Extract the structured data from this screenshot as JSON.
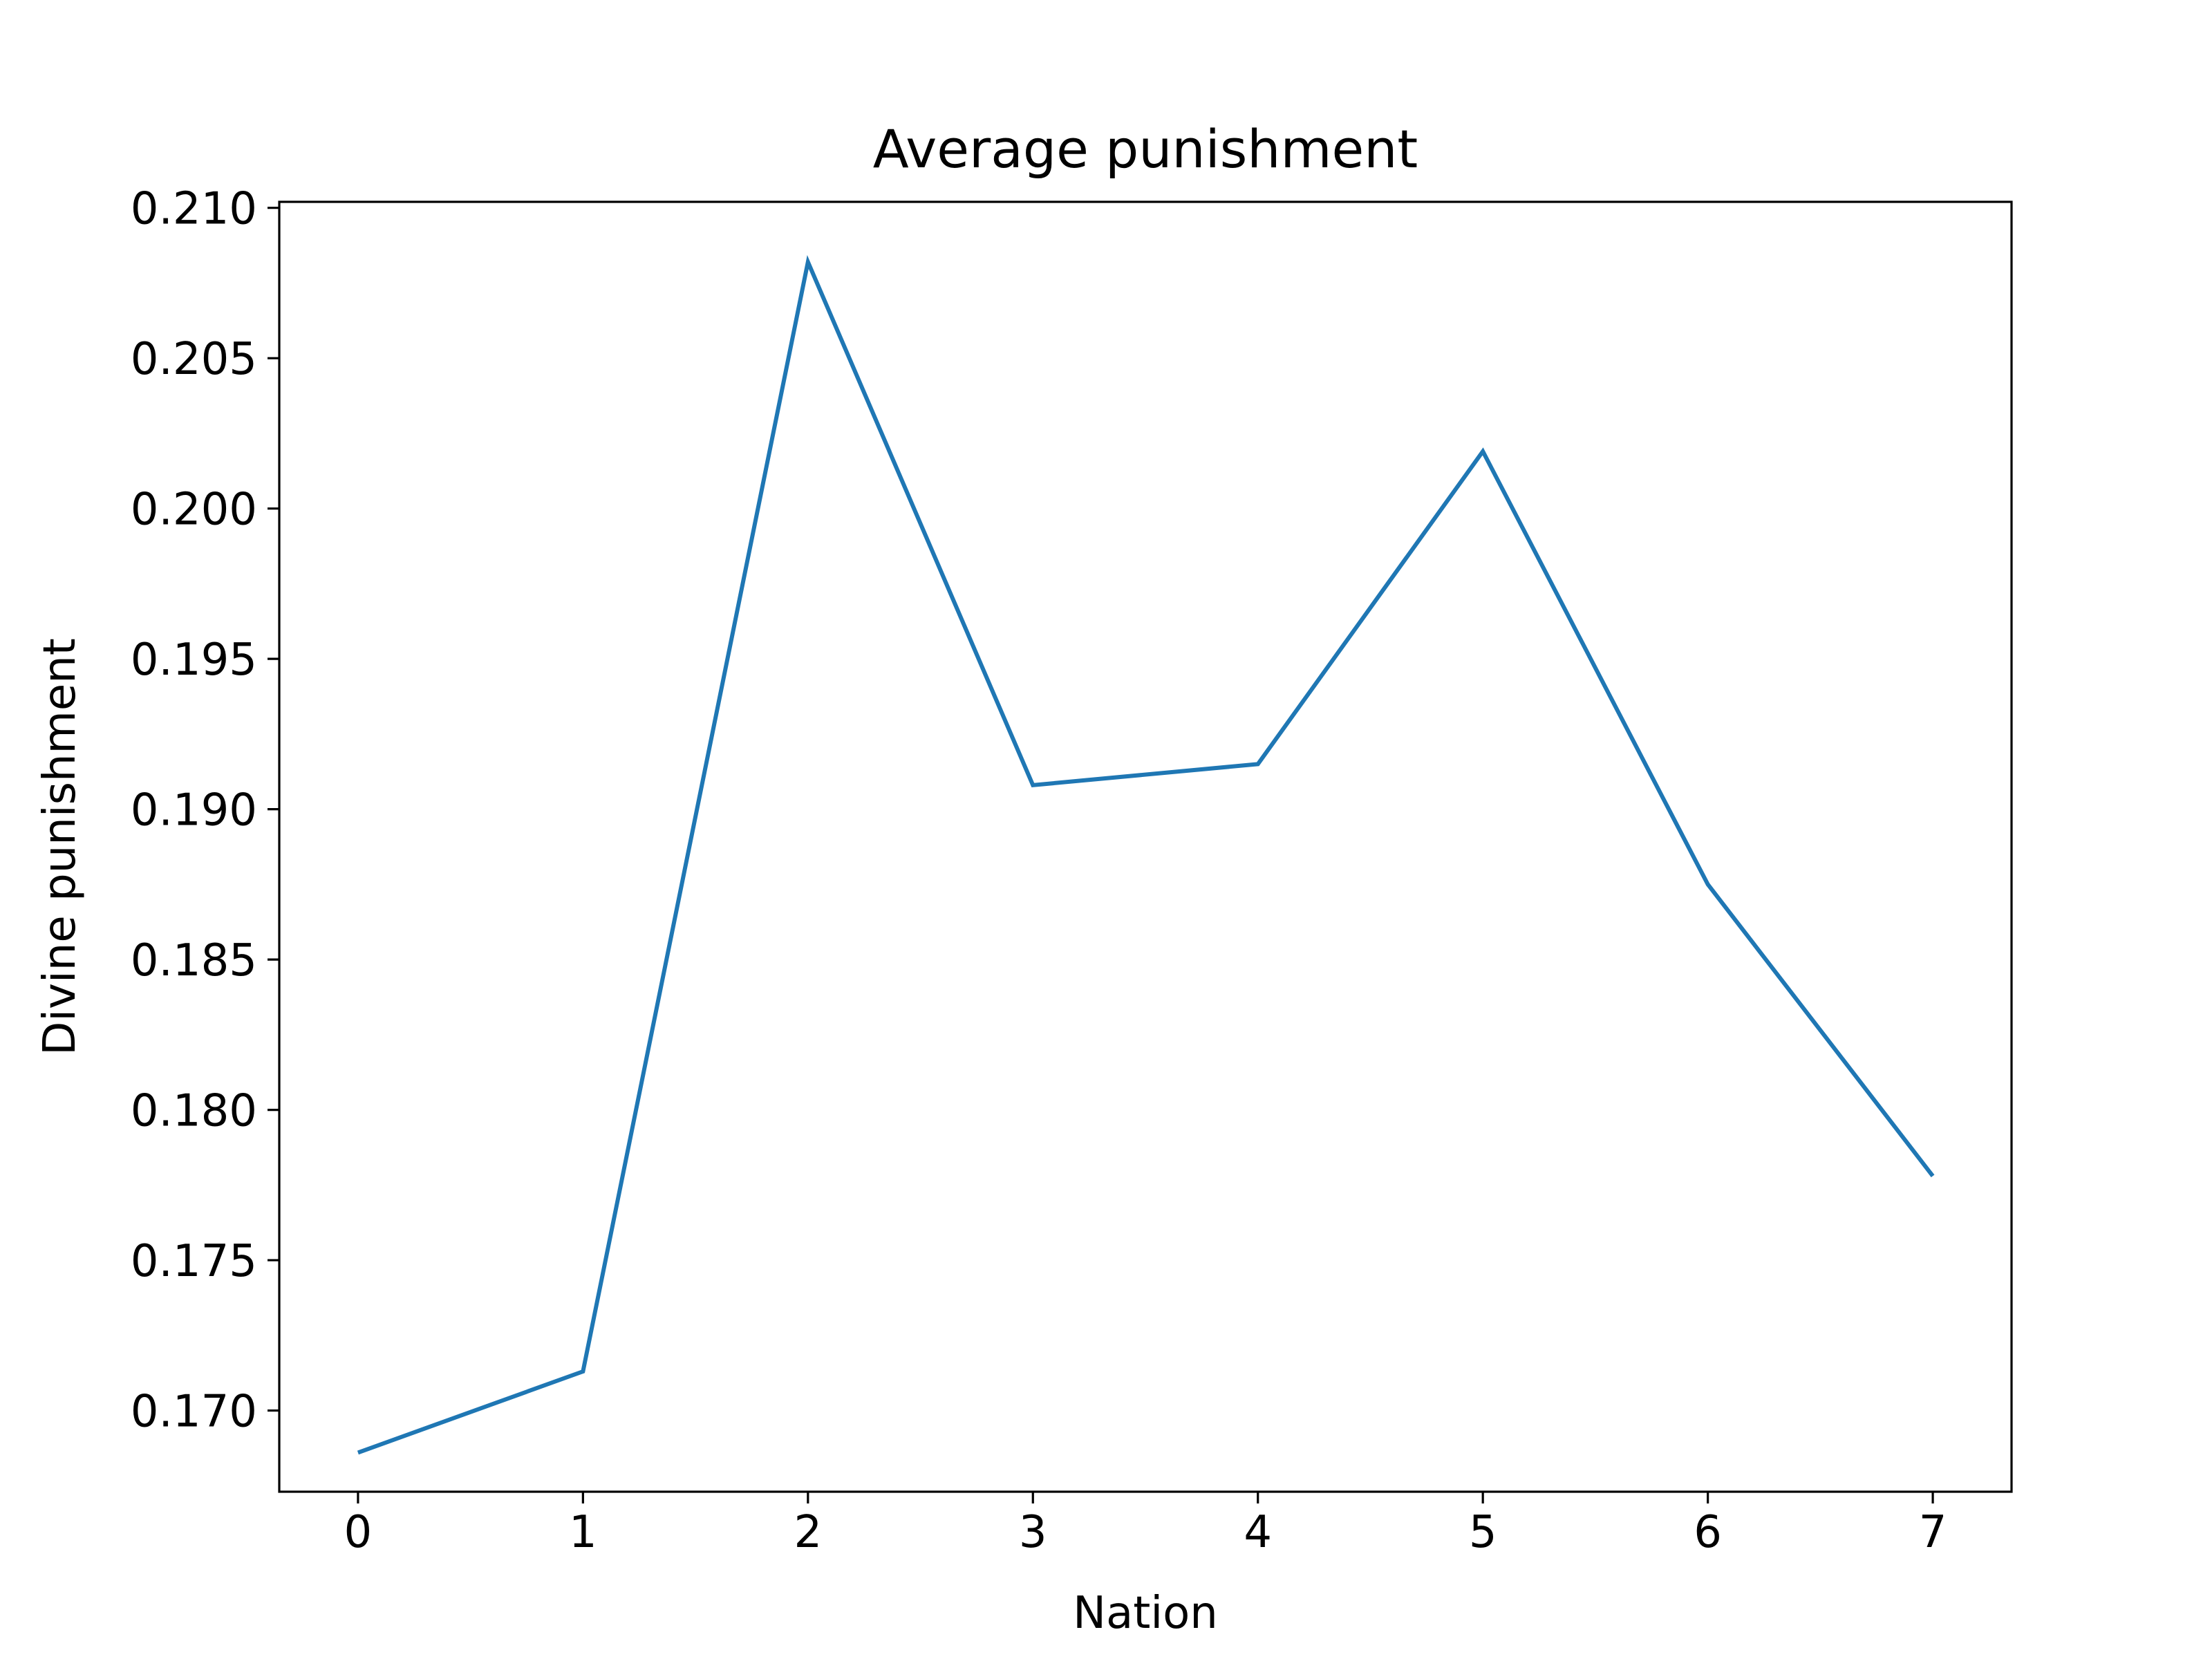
{
  "chart_data": {
    "type": "line",
    "title": "Average punishment",
    "xlabel": "Nation",
    "ylabel": "Divine punishment",
    "x": [
      0,
      1,
      2,
      3,
      4,
      5,
      6,
      7
    ],
    "series": [
      {
        "values": [
          0.1686,
          0.1713,
          0.2082,
          0.1908,
          0.1915,
          0.2019,
          0.1875,
          0.1778
        ],
        "color": "#1f77b4"
      }
    ],
    "xlim": [
      -0.35,
      7.35
    ],
    "ylim": [
      0.1673,
      0.2102
    ],
    "x_ticks": [
      0,
      1,
      2,
      3,
      4,
      5,
      6,
      7
    ],
    "x_tick_labels": [
      "0",
      "1",
      "2",
      "3",
      "4",
      "5",
      "6",
      "7"
    ],
    "y_ticks": [
      0.17,
      0.175,
      0.18,
      0.185,
      0.19,
      0.195,
      0.2,
      0.205,
      0.21
    ],
    "y_tick_labels": [
      "0.170",
      "0.175",
      "0.180",
      "0.185",
      "0.190",
      "0.195",
      "0.200",
      "0.205",
      "0.210"
    ],
    "grid": false,
    "legend": "none"
  }
}
